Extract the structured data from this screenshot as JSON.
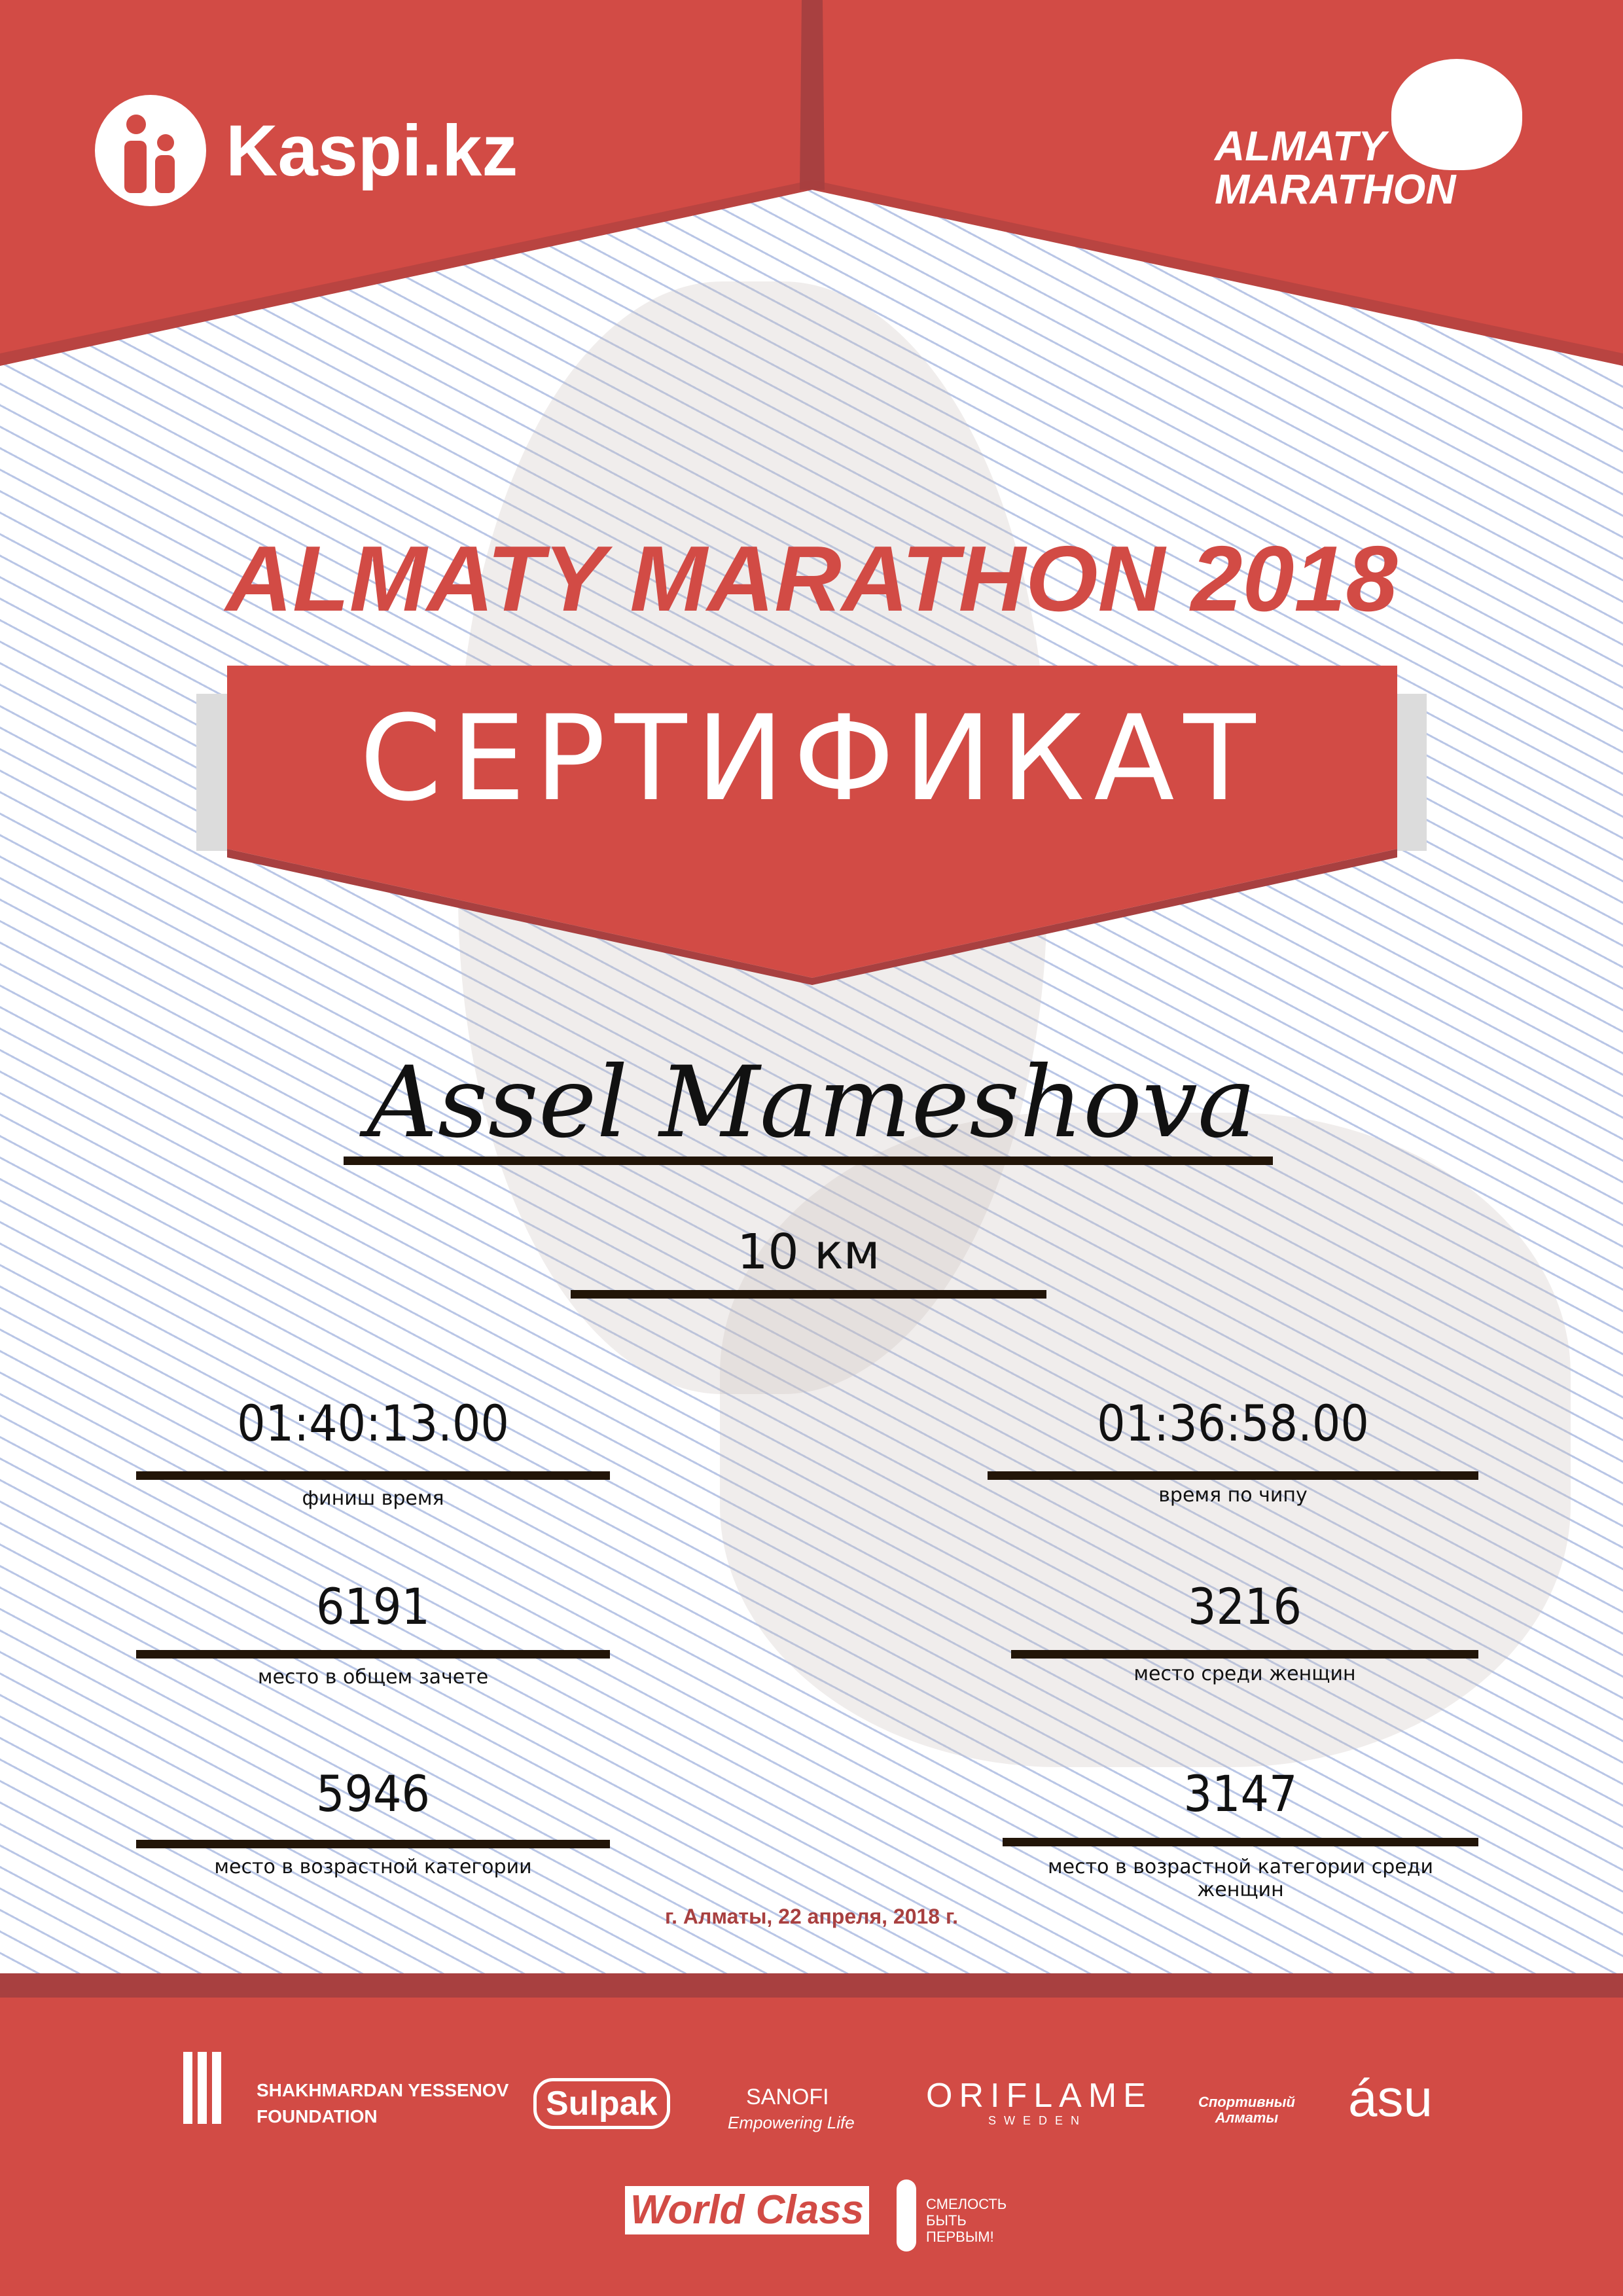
{
  "header": {
    "sponsor_logo": "Kaspi.kz",
    "event_logo_line1": "ALMATY",
    "event_logo_line2": "MARATHON",
    "icons": [
      "kaspi-people-icon",
      "runner-icon"
    ]
  },
  "title": "ALMATY MARATHON 2018",
  "banner": "СЕРТИФИКАТ",
  "participant": {
    "name": "Assel Mameshova",
    "distance": "10 км"
  },
  "stats": [
    {
      "value": "01:40:13.00",
      "label": "финиш время"
    },
    {
      "value": "01:36:58.00",
      "label": "время по чипу"
    },
    {
      "value": "6191",
      "label": "место в общем зачете"
    },
    {
      "value": "3216",
      "label": "место среди женщин"
    },
    {
      "value": "5946",
      "label": "место в возрастной категории"
    },
    {
      "value": "3147",
      "label": "место в возрастной категории среди женщин"
    }
  ],
  "date": "г. Алматы, 22 апреля, 2018 г.",
  "footer": {
    "sponsors": [
      "SHAKHMARDAN YESSENOV",
      "FOUNDATION",
      "Sulpak",
      "SANOFI",
      "Empowering Life",
      "ORIFLAME",
      "SWEDEN",
      "Спортивный Алматы",
      "ásu",
      "World Class",
      "СМЕЛОСТЬ",
      "БЫТЬ",
      "ПЕРВЫМ!"
    ]
  },
  "colors": {
    "red": "#d24b45",
    "dark_red": "#a84040",
    "line": "#221508"
  }
}
